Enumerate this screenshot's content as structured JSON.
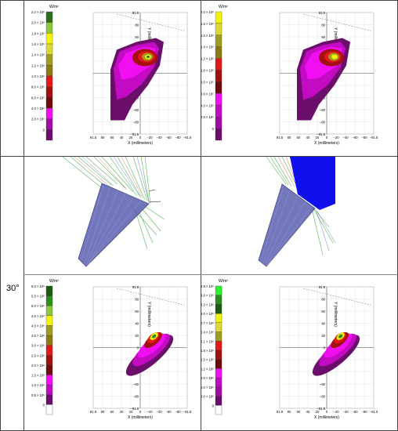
{
  "row_label": "30°",
  "unit_label": "W/m²",
  "x_axis_label": "X (millimeters)",
  "y_axis_label": "Y (millimeters)",
  "panels": [
    {
      "id": "top-left",
      "colorbar": [
        "2.2 × 10⁶",
        "2.0 × 10⁶",
        "1.8 × 10⁶",
        "1.6 × 10⁶",
        "1.4 × 10⁶",
        "1.2 × 10⁶",
        "1.0 × 10⁶",
        "8.0 × 10⁵",
        "6.0 × 10⁵",
        "4.0 × 10⁵",
        "2.0 × 10⁵",
        "0"
      ],
      "colors": [
        "#2a6e1c",
        "#8fc63f",
        "#f2f20a",
        "#d9d931",
        "#9d9d1f",
        "#8e7a15",
        "#e31818",
        "#a31010",
        "#6e0b0b",
        "#f20ef2",
        "#a40ba4",
        "#6b0d6b"
      ],
      "y_ticks": [
        "91.5",
        "80",
        "60",
        "40",
        "20",
        "0",
        "−20",
        "−40",
        "−60",
        "−80",
        "−91.5"
      ],
      "x_ticks": [
        "91.5",
        "80",
        "60",
        "40",
        "20",
        "0",
        "−20",
        "−40",
        "−60",
        "−80",
        "−91.5"
      ]
    },
    {
      "id": "top-right",
      "colorbar": [
        "2.0 × 10⁶",
        "1.8 × 10⁶",
        "1.6 × 10⁶",
        "1.4 × 10⁶",
        "1.2 × 10⁶",
        "1.0 × 10⁶",
        "8.0 × 10⁵",
        "6.0 × 10⁵",
        "4.0 × 10⁵",
        "2.0 × 10⁵",
        "0"
      ],
      "colors": [
        "#f2f20a",
        "#d9d931",
        "#9d9d1f",
        "#8e7a15",
        "#e31818",
        "#a31010",
        "#6e0b0b",
        "#f20ef2",
        "#c20bc2",
        "#a40ba4",
        "#6b0d6b"
      ],
      "y_ticks": [
        "91.5",
        "80",
        "60",
        "40",
        "20",
        "0",
        "−20",
        "−40",
        "−60",
        "−80",
        "−91.5"
      ],
      "x_ticks": [
        "91.5",
        "80",
        "60",
        "40",
        "20",
        "0",
        "−20",
        "−40",
        "−60",
        "−80",
        "−91.5"
      ]
    },
    {
      "id": "bottom-left",
      "colorbar": [
        "6.0 × 10⁶",
        "5.5 × 10⁶",
        "5.0 × 10⁶",
        "4.5 × 10⁶",
        "4.0 × 10⁶",
        "3.5 × 10⁶",
        "3.0 × 10⁶",
        "2.5 × 10⁶",
        "2.0 × 10⁶",
        "1.5 × 10⁶",
        "1.0 × 10⁶",
        "0.5 × 10⁶",
        "0"
      ],
      "colors": [
        "#1f5a14",
        "#2e8b1f",
        "#8fc63f",
        "#f2f20a",
        "#9d9d1f",
        "#8e7a15",
        "#e31818",
        "#a31010",
        "#6e0b0b",
        "#f20ef2",
        "#c20bc2",
        "#6b0d6b",
        "#ffffff"
      ],
      "y_ticks": [
        "91.8",
        "80",
        "60",
        "40",
        "20",
        "0",
        "−20",
        "−40",
        "−60",
        "−80",
        "−91.8"
      ],
      "x_ticks": [
        "91.8",
        "80",
        "60",
        "40",
        "20",
        "0",
        "−20",
        "−40",
        "−60",
        "−80",
        "−91.8"
      ]
    },
    {
      "id": "bottom-right",
      "colorbar": [
        "3.9 × 10⁶",
        "3.6 × 10⁶",
        "3.3 × 10⁶",
        "3.0 × 10⁶",
        "2.7 × 10⁶",
        "2.4 × 10⁶",
        "2.1 × 10⁶",
        "1.8 × 10⁶",
        "1.5 × 10⁶",
        "1.2 × 10⁶",
        "9.0 × 10⁵",
        "6.0 × 10⁵",
        "3.0 × 10⁵",
        "0"
      ],
      "colors": [
        "#2ef22e",
        "#2e8b1f",
        "#1f5a14",
        "#f2f20a",
        "#d9d931",
        "#9d9d1f",
        "#e31818",
        "#a31010",
        "#6e0b0b",
        "#f20ef2",
        "#c20bc2",
        "#a40ba4",
        "#6b0d6b",
        "#ffffff"
      ],
      "y_ticks": [
        "91.9",
        "80",
        "60",
        "40",
        "20",
        "0",
        "−20",
        "−40",
        "−60",
        "−80",
        "−91.9"
      ],
      "x_ticks": [
        "91.9",
        "80",
        "60",
        "40",
        "20",
        "0",
        "−20",
        "−40",
        "−60",
        "−80",
        "−91.9"
      ]
    }
  ]
}
